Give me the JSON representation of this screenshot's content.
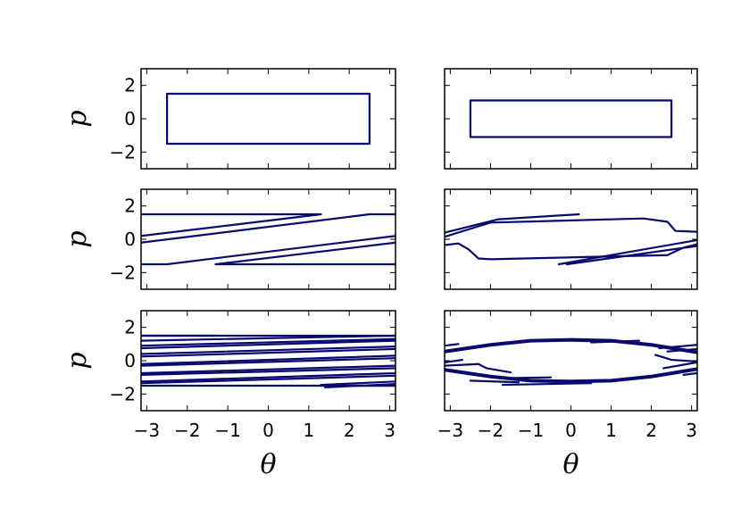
{
  "figure": {
    "line_color": "#0a0a6e",
    "background": "#ffffff"
  },
  "chart_data": [
    {
      "type": "line",
      "panel": "top-left",
      "xlabel": "",
      "ylabel": "p",
      "xlim": [
        -3.14159,
        3.14159
      ],
      "ylim": [
        -3,
        3
      ],
      "xticks": [],
      "yticks": [
        -2,
        0,
        2
      ],
      "ytick_labels": [
        "−2",
        "0",
        "2"
      ],
      "series": [
        {
          "x": [
            -2.5,
            2.5,
            2.5,
            -2.5,
            -2.5
          ],
          "y": [
            -1.5,
            -1.5,
            1.5,
            1.5,
            -1.5
          ]
        }
      ]
    },
    {
      "type": "line",
      "panel": "top-right",
      "xlabel": "",
      "ylabel": "",
      "xlim": [
        -3.14159,
        3.14159
      ],
      "ylim": [
        -3,
        3
      ],
      "xticks": [],
      "yticks": [],
      "series": [
        {
          "x": [
            -2.5,
            2.5,
            2.5,
            -2.5,
            -2.5
          ],
          "y": [
            -1.1,
            -1.1,
            1.1,
            1.1,
            -1.1
          ]
        }
      ]
    },
    {
      "type": "line",
      "panel": "middle-left",
      "xlabel": "",
      "ylabel": "p",
      "xlim": [
        -3.14159,
        3.14159
      ],
      "ylim": [
        -3,
        3
      ],
      "xticks": [],
      "yticks": [
        -2,
        0,
        2
      ],
      "ytick_labels": [
        "−2",
        "0",
        "2"
      ],
      "series": [
        {
          "x": [
            -3.14,
            1.3
          ],
          "y": [
            1.5,
            1.5
          ]
        },
        {
          "x": [
            -3.14,
            1.3
          ],
          "y": [
            0.2,
            1.5
          ]
        },
        {
          "x": [
            -3.14,
            2.5,
            3.14
          ],
          "y": [
            -0.2,
            1.5,
            1.5
          ]
        },
        {
          "x": [
            -3.14,
            -2.5,
            3.14
          ],
          "y": [
            -1.5,
            -1.5,
            0.2
          ]
        },
        {
          "x": [
            -1.3,
            3.14
          ],
          "y": [
            -1.5,
            -0.2
          ]
        },
        {
          "x": [
            -1.3,
            3.14
          ],
          "y": [
            -1.5,
            -1.5
          ]
        }
      ]
    },
    {
      "type": "line",
      "panel": "middle-right",
      "xlabel": "",
      "ylabel": "",
      "xlim": [
        -3.14159,
        3.14159
      ],
      "ylim": [
        -3,
        3
      ],
      "xticks": [],
      "yticks": [],
      "series": [
        {
          "x": [
            -3.14,
            -1.8,
            0.2
          ],
          "y": [
            0.4,
            1.2,
            1.5
          ]
        },
        {
          "x": [
            -3.14,
            -2.0,
            1.8,
            2.4,
            2.6,
            3.14
          ],
          "y": [
            0.15,
            1.0,
            1.25,
            1.05,
            0.5,
            0.45
          ]
        },
        {
          "x": [
            -3.14,
            -2.8,
            -2.55,
            -2.3,
            -2.0,
            2.4,
            2.8,
            3.14
          ],
          "y": [
            -0.35,
            -0.25,
            -0.6,
            -1.15,
            -1.2,
            -0.95,
            -0.5,
            -0.3
          ]
        },
        {
          "x": [
            -0.3,
            3.14
          ],
          "y": [
            -1.5,
            -0.05
          ]
        },
        {
          "x": [
            -0.1,
            3.14
          ],
          "y": [
            -1.5,
            -0.4
          ]
        }
      ]
    },
    {
      "type": "line",
      "panel": "bottom-left",
      "xlabel": "θ",
      "ylabel": "p",
      "xlim": [
        -3.14159,
        3.14159
      ],
      "ylim": [
        -3,
        3
      ],
      "xticks": [
        -3,
        -2,
        -1,
        0,
        1,
        2,
        3
      ],
      "xtick_labels": [
        "−3",
        "−2",
        "−1",
        "0",
        "1",
        "2",
        "3"
      ],
      "yticks": [
        -2,
        0,
        2
      ],
      "ytick_labels": [
        "−2",
        "0",
        "2"
      ],
      "series": [
        {
          "x": [
            -3.14,
            -1.3
          ],
          "y": [
            1.5,
            1.5
          ]
        },
        {
          "x": [
            -3.14,
            3.14
          ],
          "y": [
            1.5,
            1.5
          ]
        },
        {
          "x": [
            -3.14,
            3.14
          ],
          "y": [
            1.2,
            1.5
          ]
        },
        {
          "x": [
            -3.14,
            3.14
          ],
          "y": [
            0.9,
            1.3
          ]
        },
        {
          "x": [
            -3.14,
            3.14
          ],
          "y": [
            0.75,
            1.2
          ]
        },
        {
          "x": [
            -3.14,
            3.14
          ],
          "y": [
            0.4,
            0.85
          ]
        },
        {
          "x": [
            -3.14,
            3.14
          ],
          "y": [
            0.25,
            0.7
          ]
        },
        {
          "x": [
            -3.14,
            3.14
          ],
          "y": [
            -0.2,
            0.3
          ]
        },
        {
          "x": [
            -3.14,
            3.14
          ],
          "y": [
            -0.3,
            0.15
          ]
        },
        {
          "x": [
            -3.14,
            3.14
          ],
          "y": [
            -0.75,
            -0.3
          ]
        },
        {
          "x": [
            -3.14,
            3.14
          ],
          "y": [
            -0.85,
            -0.45
          ]
        },
        {
          "x": [
            -3.14,
            3.14
          ],
          "y": [
            -1.25,
            -0.75
          ]
        },
        {
          "x": [
            -3.14,
            3.14
          ],
          "y": [
            -1.35,
            -0.9
          ]
        },
        {
          "x": [
            -3.14,
            3.14
          ],
          "y": [
            -1.5,
            -1.5
          ]
        },
        {
          "x": [
            1.3,
            3.14
          ],
          "y": [
            -1.5,
            -1.5
          ]
        },
        {
          "x": [
            1.3,
            3.14
          ],
          "y": [
            -1.45,
            -1.25
          ]
        },
        {
          "x": [
            1.4,
            3.14
          ],
          "y": [
            -1.6,
            -1.4
          ]
        }
      ]
    },
    {
      "type": "line",
      "panel": "bottom-right",
      "xlabel": "θ",
      "ylabel": "",
      "xlim": [
        -3.14159,
        3.14159
      ],
      "ylim": [
        -3,
        3
      ],
      "xticks": [
        -3,
        -2,
        -1,
        0,
        1,
        2,
        3
      ],
      "xtick_labels": [
        "−3",
        "−2",
        "−1",
        "0",
        "1",
        "2",
        "3"
      ],
      "yticks": [],
      "series": [
        {
          "x": [
            -3.14,
            -2.0,
            -1.0,
            0.0,
            1.0,
            2.0,
            3.14
          ],
          "y": [
            0.6,
            1.0,
            1.25,
            1.3,
            1.25,
            1.0,
            0.55
          ]
        },
        {
          "x": [
            -3.14,
            -2.0,
            -1.0,
            0.0,
            1.0,
            2.0,
            3.14
          ],
          "y": [
            0.5,
            0.9,
            1.15,
            1.2,
            1.15,
            0.9,
            0.45
          ]
        },
        {
          "x": [
            -3.14,
            -2.0,
            -1.0,
            0.0,
            1.0,
            2.0,
            3.14
          ],
          "y": [
            -0.6,
            -1.0,
            -1.25,
            -1.3,
            -1.25,
            -1.0,
            -0.55
          ]
        },
        {
          "x": [
            -3.14,
            -2.0,
            -1.0,
            0.0,
            1.0,
            2.0,
            3.14
          ],
          "y": [
            -0.5,
            -0.9,
            -1.15,
            -1.2,
            -1.15,
            -0.9,
            -0.45
          ]
        },
        {
          "x": [
            -3.14,
            -2.8
          ],
          "y": [
            0.9,
            1.0
          ]
        },
        {
          "x": [
            0.5,
            1.7
          ],
          "y": [
            1.1,
            1.2
          ]
        },
        {
          "x": [
            -3.14,
            -2.7
          ],
          "y": [
            -0.1,
            0.05
          ]
        },
        {
          "x": [
            -3.14,
            -2.3,
            -2.1,
            -1.5
          ],
          "y": [
            -0.3,
            -0.2,
            -0.45,
            -0.7
          ]
        },
        {
          "x": [
            2.1,
            2.5,
            3.14
          ],
          "y": [
            0.35,
            0.05,
            -0.05
          ]
        },
        {
          "x": [
            2.3,
            3.14
          ],
          "y": [
            -0.45,
            -0.1
          ]
        },
        {
          "x": [
            2.2,
            3.14
          ],
          "y": [
            0.75,
            0.95
          ]
        },
        {
          "x": [
            2.4,
            3.14
          ],
          "y": [
            0.55,
            0.7
          ]
        },
        {
          "x": [
            -1.8,
            -0.5
          ],
          "y": [
            -1.05,
            -1.0
          ]
        },
        {
          "x": [
            -1.7,
            0.5
          ],
          "y": [
            -1.45,
            -1.35
          ]
        },
        {
          "x": [
            -2.5,
            -1.3
          ],
          "y": [
            -1.2,
            -1.3
          ]
        },
        {
          "x": [
            2.8,
            3.14
          ],
          "y": [
            -0.85,
            -0.75
          ]
        }
      ]
    }
  ]
}
